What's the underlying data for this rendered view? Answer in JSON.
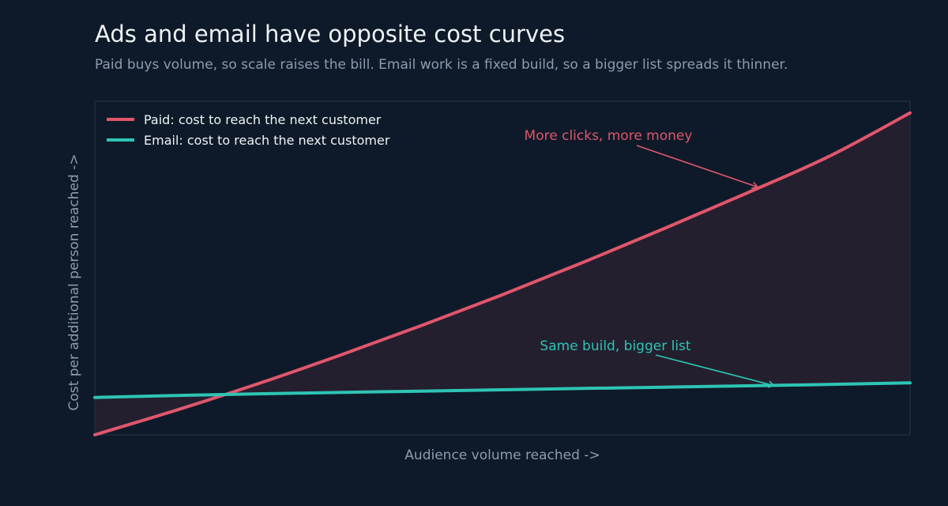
{
  "header": {
    "title": "Ads and email have opposite cost curves",
    "subtitle": "Paid buys volume, so scale raises the bill. Email work is a fixed build, so a bigger list spreads it thinner."
  },
  "colors": {
    "background": "#0e1a29",
    "paid": "#e0566c",
    "email": "#2ec4b3",
    "gap_fill": "#231f2f",
    "axis_text": "#8c9cae",
    "frame": "#243446"
  },
  "chart_data": {
    "type": "line",
    "title": "Ads and email have opposite cost curves",
    "subtitle": "Paid buys volume, so scale raises the bill. Email work is a fixed build, so a bigger list spreads it thinner.",
    "xlabel": "Audience volume reached  ->",
    "ylabel": "Cost per additional person reached  ->",
    "x_ticks": [],
    "y_ticks": [],
    "xlim": [
      0,
      1
    ],
    "ylim": [
      0,
      1
    ],
    "grid": false,
    "legend_position": "top-left",
    "x": [
      0,
      0.1,
      0.2,
      0.3,
      0.4,
      0.5,
      0.6,
      0.7,
      0.8,
      0.9,
      1.0
    ],
    "series": [
      {
        "name": "Paid: cost to reach the next customer",
        "color": "#e0566c",
        "values": [
          0.0,
          0.074,
          0.153,
          0.238,
          0.327,
          0.42,
          0.518,
          0.62,
          0.725,
          0.834,
          0.965
        ]
      },
      {
        "name": "Email: cost to reach the next customer",
        "color": "#2ec4b3",
        "values": [
          0.112,
          0.118,
          0.123,
          0.127,
          0.131,
          0.135,
          0.139,
          0.143,
          0.147,
          0.151,
          0.156
        ]
      }
    ],
    "annotations": [
      {
        "text": "More clicks, more money",
        "series": 0,
        "x": 0.815,
        "y": 0.745,
        "color": "#e0566c"
      },
      {
        "text": "Same build, bigger list",
        "series": 1,
        "x": 0.835,
        "y": 0.15,
        "color": "#2ec4b3"
      }
    ]
  }
}
